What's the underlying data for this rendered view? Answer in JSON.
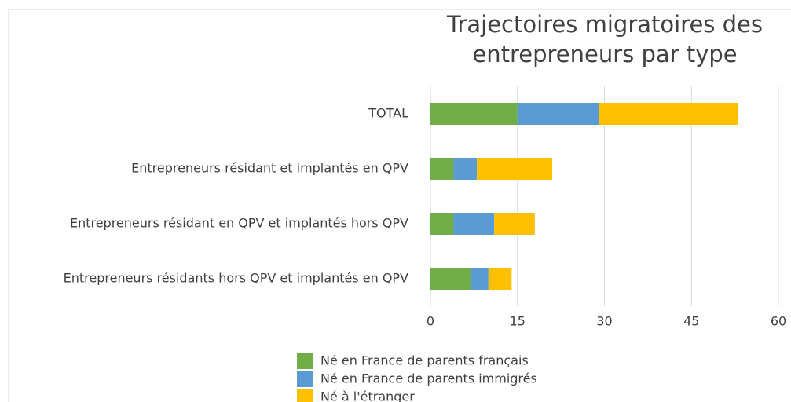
{
  "chart_data": {
    "type": "stacked-barh",
    "title": "Trajectoires migratoires des entrepreneurs par type",
    "categories": [
      "TOTAL",
      "Entrepreneurs résidant et implantés en QPV",
      "Entrepreneurs résidant en QPV et implantés hors QPV",
      "Entrepreneurs résidants hors QPV et implantés en QPV"
    ],
    "series": [
      {
        "name": "Né en France de parents français",
        "color": "#70ad47",
        "values": [
          15,
          4,
          4,
          7
        ]
      },
      {
        "name": "Né en France de parents immigrés",
        "color": "#5b9bd5",
        "values": [
          14,
          4,
          7,
          3
        ]
      },
      {
        "name": "Né à l'étranger",
        "color": "#ffc000",
        "values": [
          24,
          13,
          7,
          4
        ]
      }
    ],
    "xlim": [
      0,
      60
    ],
    "xticks": [
      0,
      15,
      30,
      45,
      60
    ],
    "grid": true,
    "legend": "bottom"
  }
}
